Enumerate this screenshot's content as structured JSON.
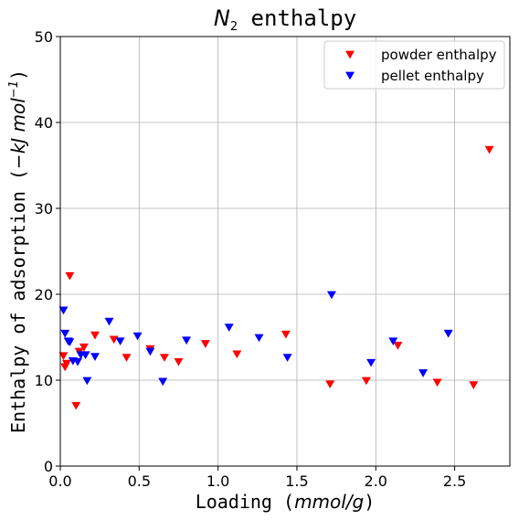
{
  "chart_data": {
    "type": "scatter",
    "title": {
      "symbol": "N",
      "subscript": "2",
      "rest": " enthalpy"
    },
    "xlabel": {
      "text": "Loading (",
      "italic": "mmol/g",
      "close": ")"
    },
    "ylabel": {
      "text": "Enthalpy of adsorption (",
      "italic_pre": "−kJ mol",
      "sup": "−1",
      "close": ")"
    },
    "xlim": [
      0,
      2.85
    ],
    "ylim": [
      0,
      50
    ],
    "xticks": [
      0.0,
      0.5,
      1.0,
      1.5,
      2.0,
      2.5
    ],
    "xtick_labels": [
      "0.0",
      "0.5",
      "1.0",
      "1.5",
      "2.0",
      "2.5"
    ],
    "yticks": [
      0,
      10,
      20,
      30,
      40,
      50
    ],
    "ytick_labels": [
      "0",
      "10",
      "20",
      "30",
      "40",
      "50"
    ],
    "grid": true,
    "legend_position": "top-right",
    "marker": "triangle-down",
    "series": [
      {
        "name": "powder enthalpy",
        "color": "#ff0000",
        "points": [
          [
            0.02,
            12.8
          ],
          [
            0.03,
            11.5
          ],
          [
            0.04,
            11.9
          ],
          [
            0.06,
            22.1
          ],
          [
            0.1,
            7.0
          ],
          [
            0.12,
            13.3
          ],
          [
            0.15,
            13.8
          ],
          [
            0.22,
            15.2
          ],
          [
            0.34,
            14.7
          ],
          [
            0.42,
            12.6
          ],
          [
            0.57,
            13.6
          ],
          [
            0.66,
            12.6
          ],
          [
            0.75,
            12.1
          ],
          [
            0.92,
            14.2
          ],
          [
            1.12,
            13.0
          ],
          [
            1.43,
            15.3
          ],
          [
            1.71,
            9.5
          ],
          [
            1.94,
            9.9
          ],
          [
            2.14,
            14.0
          ],
          [
            2.39,
            9.7
          ],
          [
            2.62,
            9.4
          ],
          [
            2.72,
            36.8
          ]
        ]
      },
      {
        "name": "pellet enthalpy",
        "color": "#0000ff",
        "points": [
          [
            0.02,
            18.1
          ],
          [
            0.03,
            15.4
          ],
          [
            0.05,
            14.5
          ],
          [
            0.06,
            14.4
          ],
          [
            0.08,
            12.2
          ],
          [
            0.11,
            12.1
          ],
          [
            0.13,
            12.9
          ],
          [
            0.16,
            12.9
          ],
          [
            0.17,
            9.9
          ],
          [
            0.22,
            12.7
          ],
          [
            0.31,
            16.8
          ],
          [
            0.38,
            14.5
          ],
          [
            0.49,
            15.1
          ],
          [
            0.57,
            13.3
          ],
          [
            0.65,
            9.8
          ],
          [
            0.8,
            14.6
          ],
          [
            1.07,
            16.1
          ],
          [
            1.26,
            14.9
          ],
          [
            1.44,
            12.6
          ],
          [
            1.72,
            19.9
          ],
          [
            1.97,
            12.0
          ],
          [
            2.11,
            14.5
          ],
          [
            2.3,
            10.8
          ],
          [
            2.46,
            15.4
          ]
        ]
      }
    ]
  }
}
